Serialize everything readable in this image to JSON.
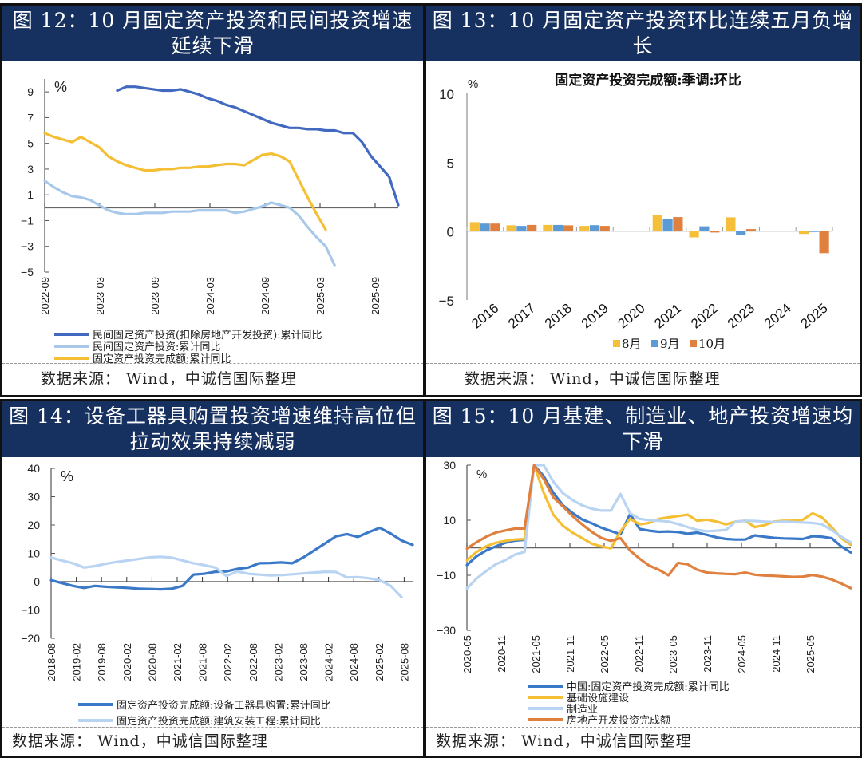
{
  "source_label": "数据来源：  Wind，中诚信国际整理",
  "panels": {
    "p12": {
      "title": "图 12：10 月固定资产投资和民间投资增速延续下滑"
    },
    "p13": {
      "title": "图 13：10 月固定资产投资环比连续五月负增长"
    },
    "p14": {
      "title": "图 14：设备工器具购置投资增速维持高位但拉动效果持续减弱"
    },
    "p15": {
      "title": "图 15：10 月基建、制造业、地产投资增速均下滑"
    }
  },
  "chart_data": [
    {
      "id": "p12",
      "type": "line",
      "unit_label": "%",
      "ylim": [
        -5,
        10
      ],
      "yticks": [
        -5,
        -3,
        -1,
        1,
        3,
        5,
        7,
        9
      ],
      "xticks": [
        "2022-09",
        "2023-03",
        "2023-09",
        "2024-03",
        "2024-09",
        "2025-03",
        "2025-09"
      ],
      "x_start": "2022-09",
      "x_end": "2025-10",
      "legend_position": "bottom",
      "colors": [
        "#4169c0",
        "#a8c8ea",
        "#f5bf35"
      ],
      "series": [
        {
          "name": "民间固定资产投资(扣除房地产开发投资):累计同比",
          "start_month": 8,
          "values": [
            9.1,
            9.4,
            9.4,
            9.3,
            9.2,
            9.1,
            9.1,
            9.2,
            9.0,
            8.8,
            8.5,
            8.3,
            8.0,
            7.8,
            7.5,
            7.2,
            6.9,
            6.6,
            6.4,
            6.2,
            6.2,
            6.1,
            6.1,
            6.0,
            6.0,
            5.8,
            5.8,
            5.1,
            4.0,
            3.2,
            2.4,
            0.2
          ]
        },
        {
          "name": "民间固定资产投资:累计同比",
          "start_month": 0,
          "values": [
            2.1,
            1.6,
            1.2,
            0.9,
            0.8,
            0.6,
            0.2,
            -0.2,
            -0.4,
            -0.5,
            -0.5,
            -0.4,
            -0.4,
            -0.4,
            -0.3,
            -0.3,
            -0.3,
            -0.2,
            -0.2,
            -0.2,
            -0.2,
            -0.4,
            -0.3,
            -0.1,
            0.1,
            0.4,
            0.2,
            0.0,
            -0.6,
            -1.5,
            -2.3,
            -3.0,
            -4.5
          ]
        },
        {
          "name": "固定资产投资完成额:累计同比",
          "start_month": 0,
          "values": [
            5.8,
            5.5,
            5.3,
            5.1,
            5.5,
            5.1,
            4.7,
            4.0,
            3.6,
            3.3,
            3.1,
            2.9,
            2.9,
            3.0,
            3.0,
            3.1,
            3.1,
            3.2,
            3.2,
            3.3,
            3.4,
            3.4,
            3.3,
            3.7,
            4.1,
            4.2,
            4.0,
            3.6,
            2.2,
            0.8,
            -0.5,
            -1.7
          ]
        }
      ]
    },
    {
      "id": "p13",
      "type": "bar",
      "title": "固定资产投资完成额:季调:环比",
      "unit_label": "%",
      "ylim": [
        -5,
        10
      ],
      "yticks": [
        -5,
        0,
        5,
        10
      ],
      "categories": [
        "2016",
        "2017",
        "2018",
        "2019",
        "2020",
        "2021",
        "2022",
        "2023",
        "2024",
        "2025"
      ],
      "legend_position": "bottom",
      "series": [
        {
          "name": "8月",
          "color": "#f5bf3a",
          "values": [
            0.65,
            0.42,
            0.45,
            0.38,
            null,
            1.15,
            -0.45,
            1.0,
            null,
            -0.2
          ]
        },
        {
          "name": "9月",
          "color": "#5b9bd5",
          "values": [
            0.55,
            0.38,
            0.45,
            0.43,
            null,
            0.88,
            0.35,
            -0.25,
            null,
            -0.05
          ]
        },
        {
          "name": "10月",
          "color": "#e0803f",
          "values": [
            0.55,
            0.45,
            0.42,
            0.38,
            null,
            1.02,
            -0.1,
            0.15,
            null,
            -1.6
          ]
        }
      ]
    },
    {
      "id": "p14",
      "type": "line",
      "unit_label": "%",
      "ylim": [
        -20,
        40
      ],
      "yticks": [
        -20,
        -10,
        0,
        10,
        20,
        30,
        40
      ],
      "xticks": [
        "2018-08",
        "2019-02",
        "2019-08",
        "2020-02",
        "2020-08",
        "2021-02",
        "2021-08",
        "2022-02",
        "2022-08",
        "2023-02",
        "2023-08",
        "2024-02",
        "2024-08",
        "2025-02",
        "2025-08"
      ],
      "legend_position": "bottom",
      "colors": [
        "#3a78c8",
        "#b8d4f2"
      ],
      "series": [
        {
          "name": "固定资产投资完成额:设备工器具购置:累计同比",
          "values": [
            0.5,
            -0.5,
            -1.5,
            -2.2,
            -1.5,
            -1.8,
            -2.0,
            -2.2,
            -2.5,
            -2.6,
            -2.7,
            -2.5,
            -1.5,
            2.5,
            2.8,
            3.5,
            3.6,
            4.5,
            5.0,
            6.5,
            6.6,
            6.8,
            6.5,
            8.5,
            11.0,
            13.5,
            16.0,
            16.8,
            15.8,
            17.5,
            19.0,
            17.0,
            14.5,
            13.0
          ]
        },
        {
          "name": "固定资产投资完成额:建筑安装工程:累计同比",
          "values": [
            8.5,
            7.5,
            6.5,
            5.0,
            5.5,
            6.3,
            7.0,
            7.5,
            8.0,
            8.6,
            8.8,
            8.5,
            7.5,
            6.5,
            5.8,
            5.0,
            2.0,
            3.6,
            2.8,
            2.5,
            2.2,
            2.3,
            2.6,
            2.9,
            3.2,
            3.5,
            3.4,
            1.5,
            1.6,
            1.2,
            0.5,
            -1.5,
            -5.5
          ]
        }
      ]
    },
    {
      "id": "p15",
      "type": "line",
      "unit_label": "%",
      "ylim": [
        -30,
        30
      ],
      "yticks": [
        -30,
        -10,
        10,
        30
      ],
      "xticks": [
        "2020-05",
        "2020-11",
        "2021-05",
        "2021-11",
        "2022-05",
        "2022-11",
        "2023-05",
        "2023-11",
        "2024-05",
        "2024-11",
        "2025-05"
      ],
      "legend_position": "bottom",
      "colors": [
        "#3a78c8",
        "#f5bf35",
        "#b8d4f2",
        "#e0803f"
      ],
      "series": [
        {
          "name": "中国:固定资产投资完成额:累计同比",
          "values": [
            -6.3,
            -3.1,
            -1.0,
            0.5,
            1.8,
            2.6,
            2.9,
            35,
            26,
            20,
            15.4,
            12.6,
            10.3,
            8.9,
            7.3,
            6.1,
            4.9,
            12.2,
            6.8,
            6.2,
            5.8,
            5.9,
            5.7,
            5.1,
            5.5,
            4.7,
            3.8,
            3.2,
            3.0,
            3.0,
            4.5,
            4.0,
            3.6,
            3.4,
            3.3,
            3.2,
            4.2,
            4.0,
            3.5,
            0.5,
            -1.7
          ]
        },
        {
          "name": "基础设施建设",
          "values": [
            -4.5,
            -1.5,
            0.5,
            1.8,
            2.5,
            3.0,
            3.2,
            35,
            20,
            12,
            8.0,
            5.5,
            3.5,
            1.5,
            0.5,
            -0.2,
            6,
            10.5,
            8.5,
            9.0,
            10.5,
            11.0,
            11.5,
            12.0,
            9.8,
            10.2,
            9.5,
            8.5,
            9.5,
            9.8,
            7.5,
            8.2,
            9.5,
            9.8,
            9.8,
            10.2,
            12.5,
            11.0,
            7.5,
            3.5,
            1.1
          ]
        },
        {
          "name": "制造业",
          "values": [
            -14.8,
            -11.2,
            -8.5,
            -6.0,
            -4.5,
            -2.5,
            -1.5,
            40,
            30,
            24,
            19.8,
            17.3,
            15.4,
            14.2,
            13.5,
            13.5,
            19.5,
            12.5,
            10.5,
            10.0,
            9.8,
            9.5,
            8.6,
            7.5,
            6.5,
            6.0,
            6.2,
            6.5,
            9.5,
            9.8,
            9.7,
            9.5,
            9.3,
            9.5,
            9.3,
            9.2,
            9.0,
            8.5,
            6.5,
            4.0,
            1.9
          ]
        },
        {
          "name": "房地产开发投资完成额",
          "values": [
            -0.3,
            2.0,
            4.0,
            5.5,
            6.3,
            7.0,
            7.0,
            38,
            25,
            18.3,
            15.0,
            11.5,
            8.5,
            5.8,
            3.6,
            2.5,
            3.5,
            -1.0,
            -4.0,
            -6.5,
            -8.0,
            -10.0,
            -5.5,
            -6.0,
            -8.0,
            -9.0,
            -9.3,
            -9.5,
            -9.6,
            -9.0,
            -9.8,
            -10.1,
            -10.2,
            -10.4,
            -10.6,
            -10.5,
            -9.9,
            -10.5,
            -11.5,
            -13.0,
            -14.7
          ]
        }
      ]
    }
  ]
}
